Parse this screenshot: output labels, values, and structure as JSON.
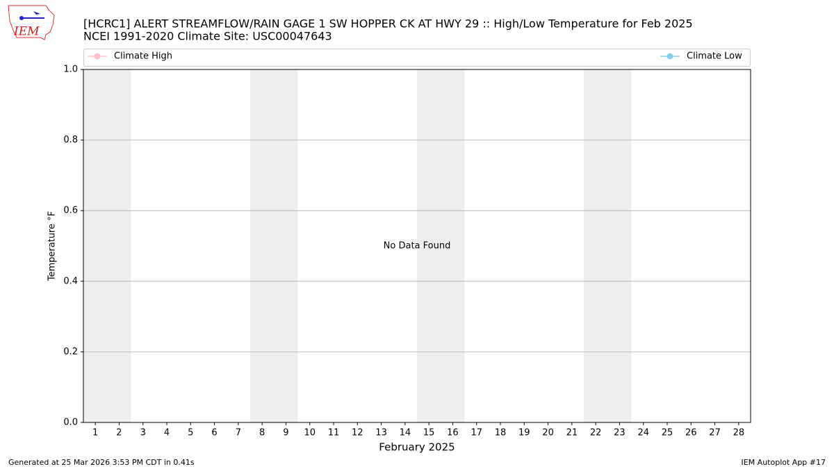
{
  "logo": "IEM",
  "footer": {
    "left": "Generated at 25 Mar 2026 3:53 PM CDT in 0.41s",
    "right": "IEM Autoplot App #17"
  },
  "chart_data": {
    "type": "line",
    "title": "[HCRC1] ALERT STREAMFLOW/RAIN GAGE 1 SW HOPPER CK AT HWY 29 :: High/Low Temperature for Feb 2025",
    "subtitle": "NCEI 1991-2020 Climate Site: USC00047643",
    "x_label": "February 2025",
    "y_label": "Temperature °F",
    "series": [
      {
        "name": "Climate High",
        "color": "#ffc0cb"
      },
      {
        "name": "Climate Low",
        "color": "#87ceeb"
      }
    ],
    "xlim": [
      0.5,
      28.5
    ],
    "xticks": [
      1,
      2,
      3,
      4,
      5,
      6,
      7,
      8,
      9,
      10,
      11,
      12,
      13,
      14,
      15,
      16,
      17,
      18,
      19,
      20,
      21,
      22,
      23,
      24,
      25,
      26,
      27,
      28
    ],
    "ylim": [
      0,
      1
    ],
    "yticks": [
      {
        "value": 0,
        "label": "0.0"
      },
      {
        "value": 0.2,
        "label": "0.2"
      },
      {
        "value": 0.4,
        "label": "0.4"
      },
      {
        "value": 0.6,
        "label": "0.6"
      },
      {
        "value": 0.8,
        "label": "0.8"
      },
      {
        "value": 1,
        "label": "1.0"
      }
    ],
    "grid": true,
    "weekend_spans": [
      [
        0.5,
        2.5
      ],
      [
        7.5,
        9.5
      ],
      [
        14.5,
        16.5
      ],
      [
        21.5,
        23.5
      ]
    ],
    "weekend_color": "#eeeeee",
    "annotations": [
      {
        "text": "No Data Found",
        "x": 14.5,
        "y": 0.5
      }
    ]
  }
}
